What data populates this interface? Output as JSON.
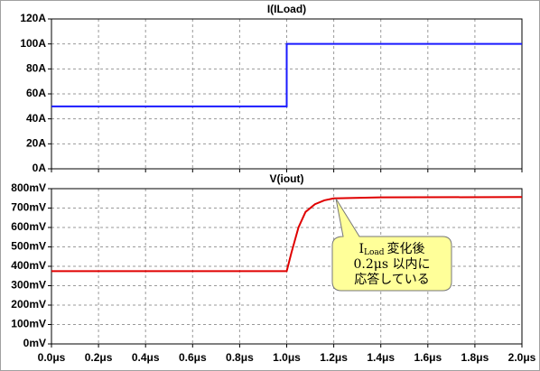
{
  "chart_data": [
    {
      "type": "line",
      "title": "I(ILoad)",
      "color": "#1a1aff",
      "x": [
        0,
        1.0,
        1.0,
        2.0
      ],
      "values": [
        50,
        50,
        100,
        100
      ],
      "xlim": [
        0,
        2.0
      ],
      "xticks": [
        0,
        0.2,
        0.4,
        0.6,
        0.8,
        1.0,
        1.2,
        1.4,
        1.6,
        1.8,
        2.0
      ],
      "ylim": [
        0,
        120
      ],
      "yticks": [
        {
          "value": 0,
          "label": "0A"
        },
        {
          "value": 20,
          "label": "20A"
        },
        {
          "value": 40,
          "label": "40A"
        },
        {
          "value": 60,
          "label": "60A"
        },
        {
          "value": 80,
          "label": "80A"
        },
        {
          "value": 100,
          "label": "100A"
        },
        {
          "value": 120,
          "label": "120A"
        }
      ],
      "grid": true
    },
    {
      "type": "line",
      "title": "V(iout)",
      "color": "#e00000",
      "x": [
        0,
        1.0,
        1.02,
        1.05,
        1.08,
        1.12,
        1.16,
        1.2,
        1.4,
        2.0
      ],
      "values": [
        375,
        375,
        470,
        600,
        680,
        720,
        740,
        750,
        755,
        757
      ],
      "xlim": [
        0,
        2.0
      ],
      "xticks": [
        {
          "value": 0,
          "label": "0.0μs"
        },
        {
          "value": 0.2,
          "label": "0.2μs"
        },
        {
          "value": 0.4,
          "label": "0.4μs"
        },
        {
          "value": 0.6,
          "label": "0.6μs"
        },
        {
          "value": 0.8,
          "label": "0.8μs"
        },
        {
          "value": 1.0,
          "label": "1.0μs"
        },
        {
          "value": 1.2,
          "label": "1.2μs"
        },
        {
          "value": 1.4,
          "label": "1.4μs"
        },
        {
          "value": 1.6,
          "label": "1.6μs"
        },
        {
          "value": 1.8,
          "label": "1.8μs"
        },
        {
          "value": 2.0,
          "label": "2.0μs"
        }
      ],
      "ylim": [
        0,
        800
      ],
      "yticks": [
        {
          "value": 0,
          "label": "0mV"
        },
        {
          "value": 100,
          "label": "100mV"
        },
        {
          "value": 200,
          "label": "200mV"
        },
        {
          "value": 300,
          "label": "300mV"
        },
        {
          "value": 400,
          "label": "400mV"
        },
        {
          "value": 500,
          "label": "500mV"
        },
        {
          "value": 600,
          "label": "600mV"
        },
        {
          "value": 700,
          "label": "700mV"
        },
        {
          "value": 800,
          "label": "800mV"
        }
      ],
      "grid": true,
      "annotation": [
        [
          "I",
          "Load",
          "変化後"
        ],
        [
          "0.2μs 以内に"
        ],
        [
          "応答している"
        ]
      ]
    }
  ]
}
